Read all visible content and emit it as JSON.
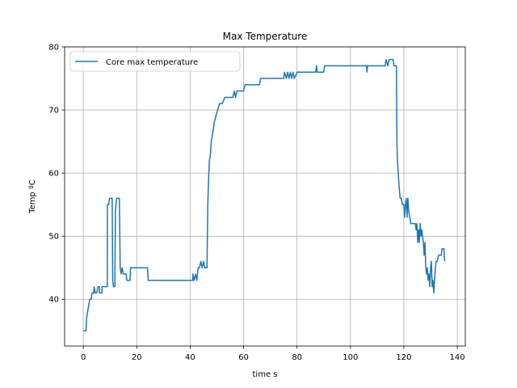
{
  "chart_data": {
    "type": "line",
    "title": "Max Temperature",
    "xlabel": "time s",
    "ylabel": "Temp ºC",
    "xlim": [
      -7,
      143
    ],
    "ylim": [
      32.6,
      80
    ],
    "xticks": [
      0,
      20,
      40,
      60,
      80,
      100,
      120,
      140
    ],
    "xtick_labels": [
      "0",
      "20",
      "40",
      "60",
      "80",
      "100",
      "120",
      "140"
    ],
    "yticks": [
      40,
      50,
      60,
      70,
      80
    ],
    "ytick_labels": [
      "40",
      "50",
      "60",
      "70",
      "80"
    ],
    "grid": true,
    "legend_position": "top-left",
    "series": [
      {
        "name": "Core max temperature",
        "color": "#1f77b4",
        "points": [
          [
            0,
            35
          ],
          [
            1,
            35
          ],
          [
            1.2,
            37
          ],
          [
            1.6,
            38
          ],
          [
            2,
            39
          ],
          [
            2.4,
            40
          ],
          [
            3,
            40
          ],
          [
            3.2,
            41
          ],
          [
            4,
            41
          ],
          [
            4,
            42
          ],
          [
            4.5,
            41
          ],
          [
            5,
            41
          ],
          [
            5.5,
            42
          ],
          [
            6,
            42
          ],
          [
            6,
            41
          ],
          [
            7,
            41
          ],
          [
            7,
            42
          ],
          [
            9,
            42
          ],
          [
            9,
            55
          ],
          [
            9.5,
            55
          ],
          [
            9.8,
            56
          ],
          [
            10.8,
            56
          ],
          [
            11,
            43
          ],
          [
            11.3,
            42
          ],
          [
            11.8,
            42
          ],
          [
            12,
            54
          ],
          [
            12.5,
            56
          ],
          [
            13.5,
            56
          ],
          [
            13.8,
            45
          ],
          [
            14.2,
            44
          ],
          [
            14.5,
            45
          ],
          [
            15,
            44
          ],
          [
            16,
            44
          ],
          [
            16.3,
            43
          ],
          [
            17.5,
            43
          ],
          [
            17.7,
            45
          ],
          [
            20,
            45
          ],
          [
            22,
            45
          ],
          [
            24,
            45
          ],
          [
            24.3,
            43
          ],
          [
            30,
            43
          ],
          [
            40,
            43
          ],
          [
            41,
            43
          ],
          [
            41,
            44
          ],
          [
            41.5,
            43
          ],
          [
            42,
            44
          ],
          [
            42.5,
            43
          ],
          [
            43,
            45
          ],
          [
            43.5,
            45
          ],
          [
            44,
            46
          ],
          [
            44.5,
            45
          ],
          [
            45,
            46
          ],
          [
            45.5,
            45
          ],
          [
            46.3,
            45
          ],
          [
            46.6,
            55
          ],
          [
            46.9,
            59
          ],
          [
            47.2,
            62
          ],
          [
            47.6,
            63
          ],
          [
            47.9,
            65
          ],
          [
            48.3,
            66
          ],
          [
            48.7,
            67
          ],
          [
            49,
            68
          ],
          [
            49.6,
            69
          ],
          [
            50.3,
            70
          ],
          [
            51,
            71
          ],
          [
            52,
            71
          ],
          [
            53,
            72
          ],
          [
            56,
            72
          ],
          [
            56.5,
            73
          ],
          [
            57,
            72
          ],
          [
            57.5,
            73
          ],
          [
            60,
            73
          ],
          [
            60.5,
            74
          ],
          [
            66,
            74
          ],
          [
            66.3,
            75
          ],
          [
            75,
            75
          ],
          [
            75.3,
            76
          ],
          [
            76,
            75
          ],
          [
            76.5,
            76
          ],
          [
            77,
            75
          ],
          [
            77.5,
            76
          ],
          [
            78,
            75
          ],
          [
            78.5,
            76
          ],
          [
            79,
            75
          ],
          [
            80,
            76
          ],
          [
            87,
            76
          ],
          [
            87.3,
            77
          ],
          [
            87.6,
            76
          ],
          [
            90,
            76
          ],
          [
            90.3,
            77
          ],
          [
            106,
            77
          ],
          [
            106.2,
            76
          ],
          [
            106.4,
            77
          ],
          [
            113,
            77
          ],
          [
            113.3,
            78
          ],
          [
            114,
            77
          ],
          [
            114.5,
            78
          ],
          [
            116,
            78
          ],
          [
            116.3,
            77
          ],
          [
            117.2,
            77
          ],
          [
            117.4,
            65
          ],
          [
            117.6,
            62
          ],
          [
            117.9,
            60
          ],
          [
            118.2,
            58
          ],
          [
            118.6,
            56
          ],
          [
            119,
            56
          ],
          [
            119.5,
            55
          ],
          [
            120,
            55
          ],
          [
            120.3,
            53
          ],
          [
            120.6,
            55
          ],
          [
            120.9,
            56
          ],
          [
            121.2,
            53
          ],
          [
            121.5,
            56
          ],
          [
            121.8,
            54
          ],
          [
            122.2,
            53
          ],
          [
            122.6,
            52
          ],
          [
            124,
            52
          ],
          [
            124.3,
            52
          ],
          [
            124.6,
            51
          ],
          [
            124.9,
            52
          ],
          [
            125.2,
            49
          ],
          [
            125.5,
            51
          ],
          [
            125.8,
            49
          ],
          [
            126.1,
            52
          ],
          [
            126.4,
            50
          ],
          [
            126.7,
            51
          ],
          [
            127,
            50
          ],
          [
            127.3,
            49
          ],
          [
            127.6,
            47
          ],
          [
            127.9,
            49
          ],
          [
            128.2,
            45
          ],
          [
            128.5,
            44
          ],
          [
            128.8,
            45
          ],
          [
            129.1,
            43
          ],
          [
            129.4,
            44
          ],
          [
            129.7,
            42
          ],
          [
            130,
            45
          ],
          [
            130.3,
            46
          ],
          [
            130.6,
            42
          ],
          [
            130.9,
            43
          ],
          [
            131.2,
            41
          ],
          [
            131.5,
            43
          ],
          [
            131.8,
            45
          ],
          [
            132.1,
            46
          ],
          [
            132.5,
            46
          ],
          [
            133,
            47
          ],
          [
            134,
            47
          ],
          [
            134.3,
            48
          ],
          [
            135,
            48
          ],
          [
            135.3,
            46
          ]
        ]
      }
    ]
  }
}
